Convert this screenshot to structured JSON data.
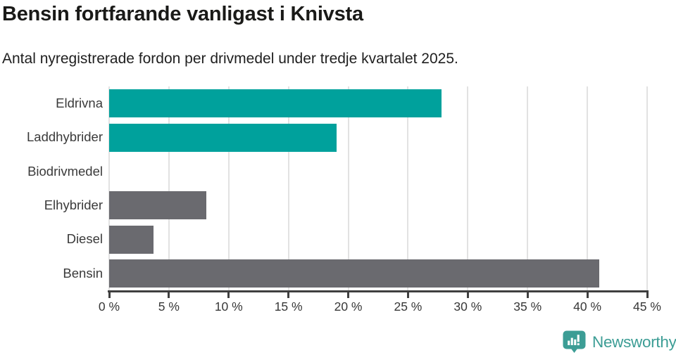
{
  "header": {
    "title": "Bensin fortfarande vanligast i Knivsta",
    "subtitle": "Antal nyregistrerade fordon per drivmedel under tredje kvartalet 2025."
  },
  "chart_data": {
    "type": "bar",
    "orientation": "horizontal",
    "title": "Bensin fortfarande vanligast i Knivsta",
    "subtitle": "Antal nyregistrerade fordon per drivmedel under tredje kvartalet 2025.",
    "categories": [
      "Eldrivna",
      "Laddhybrider",
      "Biodrivmedel",
      "Elhybrider",
      "Diesel",
      "Bensin"
    ],
    "values": [
      27.8,
      19.0,
      0,
      8.1,
      3.7,
      41.0
    ],
    "value_unit": "%",
    "bar_colors": [
      "#00a19c",
      "#00a19c",
      "#00a19c",
      "#6a6a6f",
      "#6a6a6f",
      "#6a6a6f"
    ],
    "xlim": [
      0,
      45
    ],
    "xticks": [
      0,
      5,
      10,
      15,
      20,
      25,
      30,
      35,
      40,
      45
    ],
    "xtick_labels": [
      "0 %",
      "5 %",
      "10 %",
      "15 %",
      "20 %",
      "25 %",
      "30 %",
      "35 %",
      "40 %",
      "45 %"
    ],
    "grid": true,
    "legend": false
  },
  "footer": {
    "brand": "Newsworthy",
    "brand_color": "#3c9d95"
  },
  "colors": {
    "teal_bar": "#00a19c",
    "gray_bar": "#6a6a6f",
    "gridline": "#e2e2e2",
    "axis": "#3f3f3f",
    "title_text": "#1a1a18",
    "label_text": "#3a3a3a",
    "background": "#ffffff"
  }
}
